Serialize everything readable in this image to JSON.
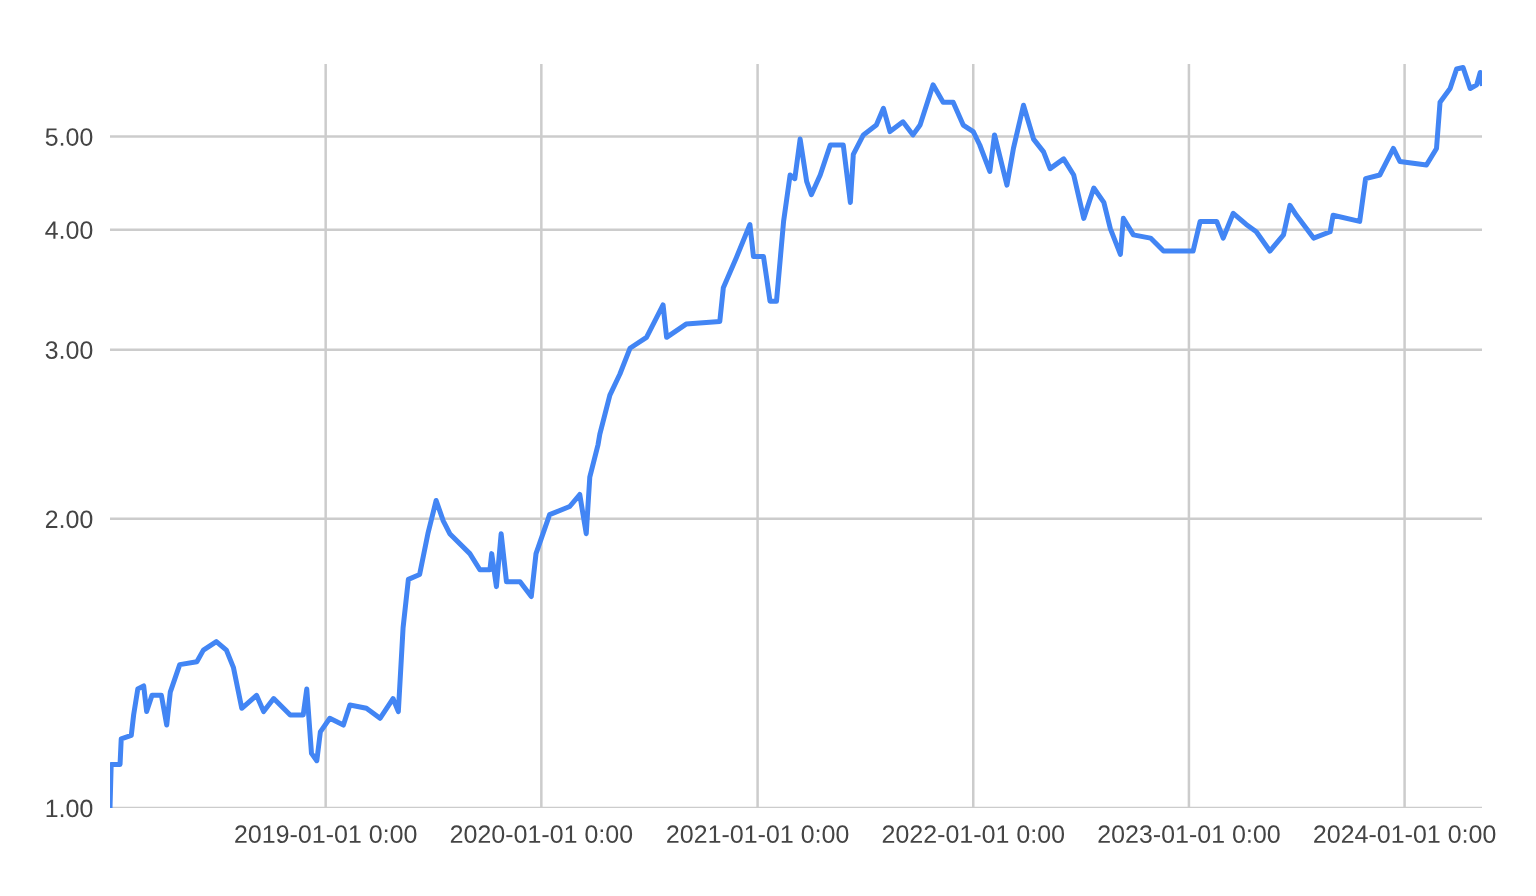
{
  "chart_data": {
    "type": "line",
    "log": "y",
    "grid": true,
    "marker": "none",
    "line_style": "solid",
    "xlim": [
      "2018-01-01",
      "2024-05-11"
    ],
    "ylim": [
      1,
      5.95
    ],
    "xticks": [
      {
        "value": "2019-01-01",
        "label": "2019-01-01 0:00"
      },
      {
        "value": "2020-01-01",
        "label": "2020-01-01 0:00"
      },
      {
        "value": "2021-01-01",
        "label": "2021-01-01 0:00"
      },
      {
        "value": "2022-01-01",
        "label": "2022-01-01 0:00"
      },
      {
        "value": "2023-01-01",
        "label": "2023-01-01 0:00"
      },
      {
        "value": "2024-01-01",
        "label": "2024-01-01 0:00"
      }
    ],
    "yticks": [
      {
        "value": 1,
        "label": "1.00"
      },
      {
        "value": 2,
        "label": "2.00"
      },
      {
        "value": 3,
        "label": "3.00"
      },
      {
        "value": 4,
        "label": "4.00"
      },
      {
        "value": 5,
        "label": "5.00"
      }
    ],
    "series": [
      {
        "color": "#4285f4",
        "x": [
          "2018-01-01",
          "2018-01-03",
          "2018-01-18",
          "2018-01-20",
          "2018-02-06",
          "2018-02-10",
          "2018-02-17",
          "2018-02-27",
          "2018-03-04",
          "2018-03-13",
          "2018-03-29",
          "2018-04-07",
          "2018-04-13",
          "2018-04-29",
          "2018-05-28",
          "2018-06-08",
          "2018-06-30",
          "2018-07-17",
          "2018-07-29",
          "2018-08-12",
          "2018-09-06",
          "2018-09-18",
          "2018-10-05",
          "2018-11-02",
          "2018-11-24",
          "2018-11-30",
          "2018-12-08",
          "2018-12-17",
          "2018-12-23",
          "2019-01-08",
          "2019-01-31",
          "2019-02-11",
          "2019-03-11",
          "2019-04-03",
          "2019-04-25",
          "2019-05-04",
          "2019-05-12",
          "2019-05-21",
          "2019-06-09",
          "2019-06-23",
          "2019-07-07",
          "2019-07-19",
          "2019-07-30",
          "2019-09-02",
          "2019-09-19",
          "2019-10-06",
          "2019-10-09",
          "2019-10-17",
          "2019-10-25",
          "2019-11-03",
          "2019-11-26",
          "2019-12-15",
          "2019-12-23",
          "2020-01-15",
          "2020-02-18",
          "2020-03-06",
          "2020-03-17",
          "2020-03-23",
          "2020-04-06",
          "2020-04-09",
          "2020-04-26",
          "2020-05-13",
          "2020-05-30",
          "2020-06-27",
          "2020-07-25",
          "2020-07-31",
          "2020-09-02",
          "2020-10-29",
          "2020-11-04",
          "2020-11-26",
          "2020-12-19",
          "2020-12-25",
          "2021-01-11",
          "2021-01-22",
          "2021-02-02",
          "2021-02-14",
          "2021-02-25",
          "2021-03-05",
          "2021-03-14",
          "2021-03-25",
          "2021-04-02",
          "2021-04-17",
          "2021-05-04",
          "2021-05-26",
          "2021-06-07",
          "2021-06-12",
          "2021-06-29",
          "2021-07-21",
          "2021-08-02",
          "2021-08-13",
          "2021-09-04",
          "2021-09-21",
          "2021-10-03",
          "2021-10-25",
          "2021-11-11",
          "2021-11-28",
          "2021-12-15",
          "2022-01-01",
          "2022-01-12",
          "2022-01-29",
          "2022-02-06",
          "2022-02-27",
          "2022-03-10",
          "2022-03-27",
          "2022-04-13",
          "2022-04-30",
          "2022-05-11",
          "2022-06-03",
          "2022-06-20",
          "2022-07-07",
          "2022-07-24",
          "2022-08-10",
          "2022-08-21",
          "2022-09-07",
          "2022-09-12",
          "2022-09-29",
          "2022-10-28",
          "2022-11-19",
          "2023-01-08",
          "2023-01-20",
          "2023-02-17",
          "2023-02-28",
          "2023-03-17",
          "2023-04-08",
          "2023-04-25",
          "2023-05-18",
          "2023-06-10",
          "2023-06-21",
          "2023-07-02",
          "2023-07-31",
          "2023-08-28",
          "2023-09-02",
          "2023-10-17",
          "2023-10-27",
          "2023-11-20",
          "2023-12-13",
          "2023-12-24",
          "2024-02-07",
          "2024-02-24",
          "2024-03-01",
          "2024-03-18",
          "2024-03-29",
          "2024-04-09",
          "2024-04-21",
          "2024-05-02",
          "2024-05-08",
          "2024-05-11"
        ],
        "values": [
          1.0,
          1.11,
          1.11,
          1.18,
          1.19,
          1.25,
          1.33,
          1.34,
          1.26,
          1.31,
          1.31,
          1.22,
          1.32,
          1.41,
          1.42,
          1.46,
          1.49,
          1.46,
          1.4,
          1.27,
          1.31,
          1.26,
          1.3,
          1.25,
          1.25,
          1.33,
          1.14,
          1.12,
          1.2,
          1.24,
          1.22,
          1.28,
          1.27,
          1.24,
          1.3,
          1.26,
          1.54,
          1.73,
          1.75,
          1.93,
          2.09,
          1.99,
          1.93,
          1.84,
          1.77,
          1.77,
          1.84,
          1.7,
          1.93,
          1.72,
          1.72,
          1.66,
          1.84,
          2.02,
          2.06,
          2.12,
          1.93,
          2.21,
          2.39,
          2.45,
          2.69,
          2.83,
          3.01,
          3.09,
          3.34,
          3.09,
          3.19,
          3.21,
          3.48,
          3.74,
          4.05,
          3.75,
          3.75,
          3.37,
          3.37,
          4.08,
          4.56,
          4.52,
          4.97,
          4.49,
          4.35,
          4.56,
          4.9,
          4.9,
          4.27,
          4.79,
          5.02,
          5.14,
          5.35,
          5.06,
          5.18,
          5.02,
          5.14,
          5.66,
          5.43,
          5.43,
          5.14,
          5.06,
          4.9,
          4.6,
          5.02,
          4.45,
          4.86,
          5.39,
          4.97,
          4.82,
          4.63,
          4.74,
          4.56,
          4.11,
          4.42,
          4.27,
          4.01,
          3.77,
          4.11,
          3.95,
          3.92,
          3.8,
          3.8,
          4.08,
          4.08,
          3.92,
          4.16,
          4.05,
          3.98,
          3.8,
          3.95,
          4.24,
          4.14,
          3.92,
          3.98,
          4.14,
          4.08,
          4.52,
          4.56,
          4.86,
          4.71,
          4.67,
          4.86,
          5.43,
          5.61,
          5.88,
          5.9,
          5.61,
          5.66,
          5.83,
          5.68
        ]
      }
    ]
  }
}
